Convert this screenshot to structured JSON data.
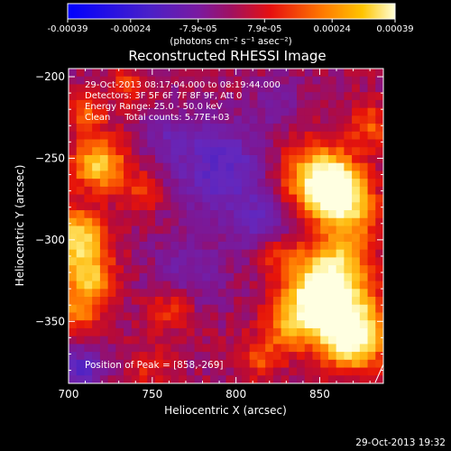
{
  "chart_data": {
    "type": "heatmap",
    "title": "Reconstructed RHESSI Image",
    "xlabel": "Heliocentric X (arcsec)",
    "ylabel": "Heliocentric Y (arcsec)",
    "xlim": [
      700,
      888
    ],
    "ylim": [
      -388,
      -195
    ],
    "x_ticks": [
      700,
      750,
      800,
      850
    ],
    "y_ticks": [
      -200,
      -250,
      -300,
      -350
    ],
    "grid": false,
    "annotations": [
      "29-Oct-2013 08:17:04.000 to 08:19:44.000",
      "Detectors: 3F 5F 6F 7F 8F 9F, Att 0",
      "Energy Range: 25.0 - 50.0 keV",
      "Clean     Total counts: 5.77E+03",
      "Position of Peak = [858,-269]"
    ],
    "peak": [
      858,
      -269
    ],
    "colorbar": {
      "ticks": [
        "-0.00039",
        "-0.00024",
        "-7.9e-05",
        "7.9e-05",
        "0.00024",
        "0.00039"
      ],
      "tick_values": [
        -0.00039,
        -0.00024,
        -7.9e-05,
        7.9e-05,
        0.00024,
        0.00039
      ],
      "range": [
        -0.00039,
        0.00039
      ],
      "label": "(photons cm⁻² s⁻¹ asec⁻²)"
    },
    "sources": [
      {
        "x": 858,
        "y": -269,
        "sigma": 11,
        "value": 0.00039
      },
      {
        "x": 848,
        "y": -262,
        "sigma": 16,
        "value": 0.00022
      },
      {
        "x": 870,
        "y": -285,
        "sigma": 12,
        "value": 0.00016
      },
      {
        "x": 862,
        "y": -312,
        "sigma": 13,
        "value": 0.00018
      },
      {
        "x": 848,
        "y": -330,
        "sigma": 14,
        "value": 0.00024
      },
      {
        "x": 860,
        "y": -345,
        "sigma": 16,
        "value": 0.00032
      },
      {
        "x": 872,
        "y": -362,
        "sigma": 12,
        "value": 0.00028
      },
      {
        "x": 832,
        "y": -352,
        "sigma": 10,
        "value": 0.00016
      },
      {
        "x": 825,
        "y": -308,
        "sigma": 9,
        "value": 0.00011
      },
      {
        "x": 880,
        "y": -230,
        "sigma": 9,
        "value": 0.00013
      },
      {
        "x": 815,
        "y": -372,
        "sigma": 9,
        "value": 0.00012
      },
      {
        "x": 718,
        "y": -254,
        "sigma": 11,
        "value": 0.00026
      },
      {
        "x": 705,
        "y": -300,
        "sigma": 12,
        "value": 0.0003
      },
      {
        "x": 712,
        "y": -325,
        "sigma": 10,
        "value": 0.00024
      },
      {
        "x": 705,
        "y": -345,
        "sigma": 8,
        "value": 0.00016
      },
      {
        "x": 712,
        "y": -222,
        "sigma": 8,
        "value": 0.00013
      },
      {
        "x": 745,
        "y": -270,
        "sigma": 8,
        "value": 0.00012
      },
      {
        "x": 762,
        "y": -342,
        "sigma": 10,
        "value": 0.00011
      },
      {
        "x": 748,
        "y": -378,
        "sigma": 8,
        "value": 9e-05
      },
      {
        "x": 735,
        "y": -205,
        "sigma": 7,
        "value": 0.00011
      }
    ],
    "negative_regions": [
      {
        "x": 790,
        "y": -255,
        "sigma": 20,
        "value": -0.00018
      },
      {
        "x": 815,
        "y": -290,
        "sigma": 14,
        "value": -0.00012
      },
      {
        "x": 772,
        "y": -320,
        "sigma": 16,
        "value": -0.0001
      },
      {
        "x": 708,
        "y": -380,
        "sigma": 8,
        "value": -0.0002
      },
      {
        "x": 825,
        "y": -215,
        "sigma": 10,
        "value": -8e-05
      },
      {
        "x": 760,
        "y": -235,
        "sigma": 10,
        "value": -8e-05
      }
    ]
  },
  "footer": {
    "timestamp": "29-Oct-2013 19:32"
  }
}
